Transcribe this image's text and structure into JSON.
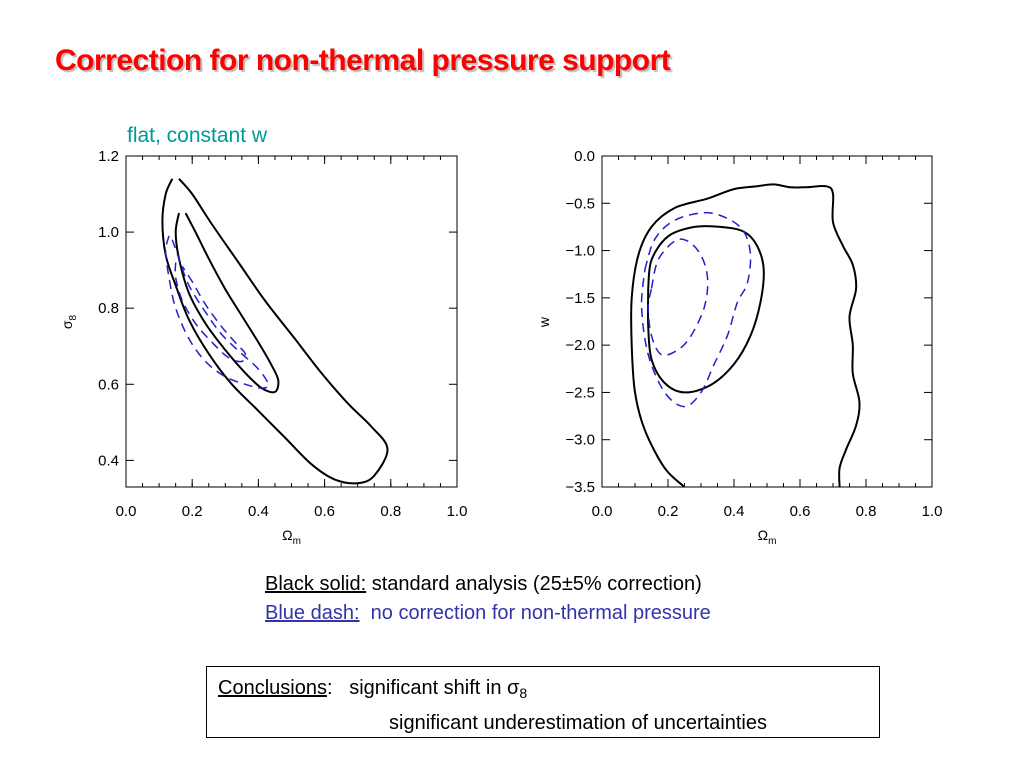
{
  "slide": {
    "title": "Correction for non-thermal pressure support",
    "subtitle": "flat, constant w"
  },
  "legend": {
    "black_key": "Black solid:",
    "black_text": "standard analysis (25±5% correction)",
    "blue_key": "Blue dash:",
    "blue_text": "no correction for non-thermal pressure"
  },
  "conclusions": {
    "key": "Conclusions",
    "line1": "significant shift in σ",
    "line1_sub": "8",
    "line2": "significant underestimation of uncertainties"
  },
  "colors": {
    "title": "#ff0000",
    "subtitle": "#009999",
    "blue_text": "#3333aa",
    "dashed_contour": "#2020cc",
    "solid_contour": "#000000"
  },
  "chart_data": [
    {
      "type": "contour",
      "xlabel": "Ω",
      "xlabel_sub": "m",
      "ylabel": "σ",
      "ylabel_sub": "8",
      "xlim": [
        0.0,
        1.0
      ],
      "ylim": [
        0.33,
        1.2
      ],
      "xticks": [
        "0.0",
        "0.2",
        "0.4",
        "0.6",
        "0.8",
        "1.0"
      ],
      "xtick_values": [
        0.0,
        0.2,
        0.4,
        0.6,
        0.8,
        1.0
      ],
      "yticks": [
        "0.4",
        "0.6",
        "0.8",
        "1.0",
        "1.2"
      ],
      "ytick_values": [
        0.4,
        0.6,
        0.8,
        1.0,
        1.2
      ],
      "series": [
        {
          "style": "solid",
          "points": [
            [
              0.14,
              1.14
            ],
            [
              0.12,
              1.1
            ],
            [
              0.11,
              1.03
            ],
            [
              0.12,
              0.94
            ],
            [
              0.15,
              0.86
            ],
            [
              0.19,
              0.77
            ],
            [
              0.25,
              0.68
            ],
            [
              0.32,
              0.6
            ],
            [
              0.4,
              0.53
            ],
            [
              0.48,
              0.46
            ],
            [
              0.56,
              0.39
            ],
            [
              0.63,
              0.35
            ],
            [
              0.7,
              0.34
            ],
            [
              0.75,
              0.36
            ],
            [
              0.79,
              0.43
            ],
            [
              0.74,
              0.49
            ],
            [
              0.67,
              0.55
            ],
            [
              0.59,
              0.63
            ],
            [
              0.51,
              0.72
            ],
            [
              0.42,
              0.82
            ],
            [
              0.34,
              0.92
            ],
            [
              0.26,
              1.02
            ],
            [
              0.2,
              1.1
            ],
            [
              0.16,
              1.14
            ]
          ]
        },
        {
          "style": "solid",
          "points": [
            [
              0.16,
              1.05
            ],
            [
              0.15,
              1.0
            ],
            [
              0.16,
              0.93
            ],
            [
              0.19,
              0.84
            ],
            [
              0.24,
              0.76
            ],
            [
              0.3,
              0.69
            ],
            [
              0.36,
              0.63
            ],
            [
              0.41,
              0.59
            ],
            [
              0.45,
              0.58
            ],
            [
              0.46,
              0.61
            ],
            [
              0.44,
              0.65
            ],
            [
              0.4,
              0.71
            ],
            [
              0.35,
              0.78
            ],
            [
              0.3,
              0.85
            ],
            [
              0.25,
              0.93
            ],
            [
              0.21,
              1.0
            ],
            [
              0.18,
              1.05
            ]
          ]
        },
        {
          "style": "dashed",
          "points": [
            [
              0.13,
              0.99
            ],
            [
              0.12,
              0.95
            ],
            [
              0.13,
              0.88
            ],
            [
              0.15,
              0.8
            ],
            [
              0.19,
              0.72
            ],
            [
              0.24,
              0.66
            ],
            [
              0.3,
              0.62
            ],
            [
              0.36,
              0.6
            ],
            [
              0.41,
              0.59
            ],
            [
              0.43,
              0.6
            ],
            [
              0.4,
              0.64
            ],
            [
              0.35,
              0.68
            ],
            [
              0.29,
              0.73
            ],
            [
              0.24,
              0.79
            ],
            [
              0.19,
              0.86
            ],
            [
              0.16,
              0.93
            ],
            [
              0.14,
              0.98
            ]
          ]
        },
        {
          "style": "dashed",
          "points": [
            [
              0.15,
              0.92
            ],
            [
              0.15,
              0.88
            ],
            [
              0.17,
              0.82
            ],
            [
              0.21,
              0.76
            ],
            [
              0.26,
              0.71
            ],
            [
              0.31,
              0.67
            ],
            [
              0.35,
              0.66
            ],
            [
              0.36,
              0.68
            ],
            [
              0.33,
              0.71
            ],
            [
              0.29,
              0.75
            ],
            [
              0.24,
              0.81
            ],
            [
              0.2,
              0.87
            ],
            [
              0.17,
              0.91
            ]
          ]
        }
      ]
    },
    {
      "type": "contour",
      "xlabel": "Ω",
      "xlabel_sub": "m",
      "ylabel": "w",
      "xlim": [
        0.0,
        1.0
      ],
      "ylim": [
        -3.5,
        0.0
      ],
      "xticks": [
        "0.0",
        "0.2",
        "0.4",
        "0.6",
        "0.8",
        "1.0"
      ],
      "xtick_values": [
        0.0,
        0.2,
        0.4,
        0.6,
        0.8,
        1.0
      ],
      "yticks": [
        "0.0",
        "−0.5",
        "−1.0",
        "−1.5",
        "−2.0",
        "−2.5",
        "−3.0",
        "−3.5"
      ],
      "ytick_values": [
        0.0,
        -0.5,
        -1.0,
        -1.5,
        -2.0,
        -2.5,
        -3.0,
        -3.5
      ],
      "series": [
        {
          "style": "solid",
          "points": [
            [
              0.25,
              -3.5
            ],
            [
              0.19,
              -3.3
            ],
            [
              0.13,
              -2.9
            ],
            [
              0.1,
              -2.5
            ],
            [
              0.09,
              -2.0
            ],
            [
              0.09,
              -1.5
            ],
            [
              0.11,
              -1.05
            ],
            [
              0.15,
              -0.75
            ],
            [
              0.22,
              -0.55
            ],
            [
              0.32,
              -0.45
            ],
            [
              0.4,
              -0.35
            ],
            [
              0.47,
              -0.32
            ],
            [
              0.52,
              -0.3
            ],
            [
              0.57,
              -0.33
            ],
            [
              0.62,
              -0.33
            ],
            [
              0.68,
              -0.32
            ],
            [
              0.7,
              -0.4
            ],
            [
              0.7,
              -0.7
            ],
            [
              0.73,
              -0.95
            ],
            [
              0.76,
              -1.15
            ],
            [
              0.77,
              -1.4
            ],
            [
              0.75,
              -1.7
            ],
            [
              0.76,
              -2.0
            ],
            [
              0.76,
              -2.3
            ],
            [
              0.78,
              -2.6
            ],
            [
              0.77,
              -2.85
            ],
            [
              0.74,
              -3.1
            ],
            [
              0.72,
              -3.3
            ],
            [
              0.72,
              -3.5
            ]
          ]
        },
        {
          "style": "solid",
          "points": [
            [
              0.14,
              -1.4
            ],
            [
              0.15,
              -1.1
            ],
            [
              0.2,
              -0.85
            ],
            [
              0.28,
              -0.75
            ],
            [
              0.36,
              -0.75
            ],
            [
              0.43,
              -0.8
            ],
            [
              0.47,
              -0.95
            ],
            [
              0.49,
              -1.2
            ],
            [
              0.48,
              -1.55
            ],
            [
              0.45,
              -1.9
            ],
            [
              0.4,
              -2.2
            ],
            [
              0.33,
              -2.42
            ],
            [
              0.25,
              -2.5
            ],
            [
              0.19,
              -2.4
            ],
            [
              0.15,
              -2.15
            ],
            [
              0.14,
              -1.8
            ],
            [
              0.14,
              -1.4
            ]
          ]
        },
        {
          "style": "dashed",
          "points": [
            [
              0.13,
              -1.2
            ],
            [
              0.16,
              -0.88
            ],
            [
              0.22,
              -0.68
            ],
            [
              0.31,
              -0.6
            ],
            [
              0.38,
              -0.66
            ],
            [
              0.43,
              -0.8
            ],
            [
              0.45,
              -1.05
            ],
            [
              0.44,
              -1.35
            ],
            [
              0.41,
              -1.55
            ],
            [
              0.38,
              -1.9
            ],
            [
              0.34,
              -2.2
            ],
            [
              0.3,
              -2.5
            ],
            [
              0.25,
              -2.65
            ],
            [
              0.19,
              -2.5
            ],
            [
              0.14,
              -2.1
            ],
            [
              0.12,
              -1.6
            ],
            [
              0.13,
              -1.2
            ]
          ]
        },
        {
          "style": "dashed",
          "points": [
            [
              0.15,
              -1.4
            ],
            [
              0.17,
              -1.1
            ],
            [
              0.22,
              -0.9
            ],
            [
              0.26,
              -0.9
            ],
            [
              0.3,
              -1.05
            ],
            [
              0.32,
              -1.3
            ],
            [
              0.31,
              -1.6
            ],
            [
              0.27,
              -1.9
            ],
            [
              0.23,
              -2.05
            ],
            [
              0.18,
              -2.1
            ],
            [
              0.15,
              -1.9
            ],
            [
              0.14,
              -1.6
            ],
            [
              0.15,
              -1.4
            ]
          ]
        }
      ]
    }
  ]
}
